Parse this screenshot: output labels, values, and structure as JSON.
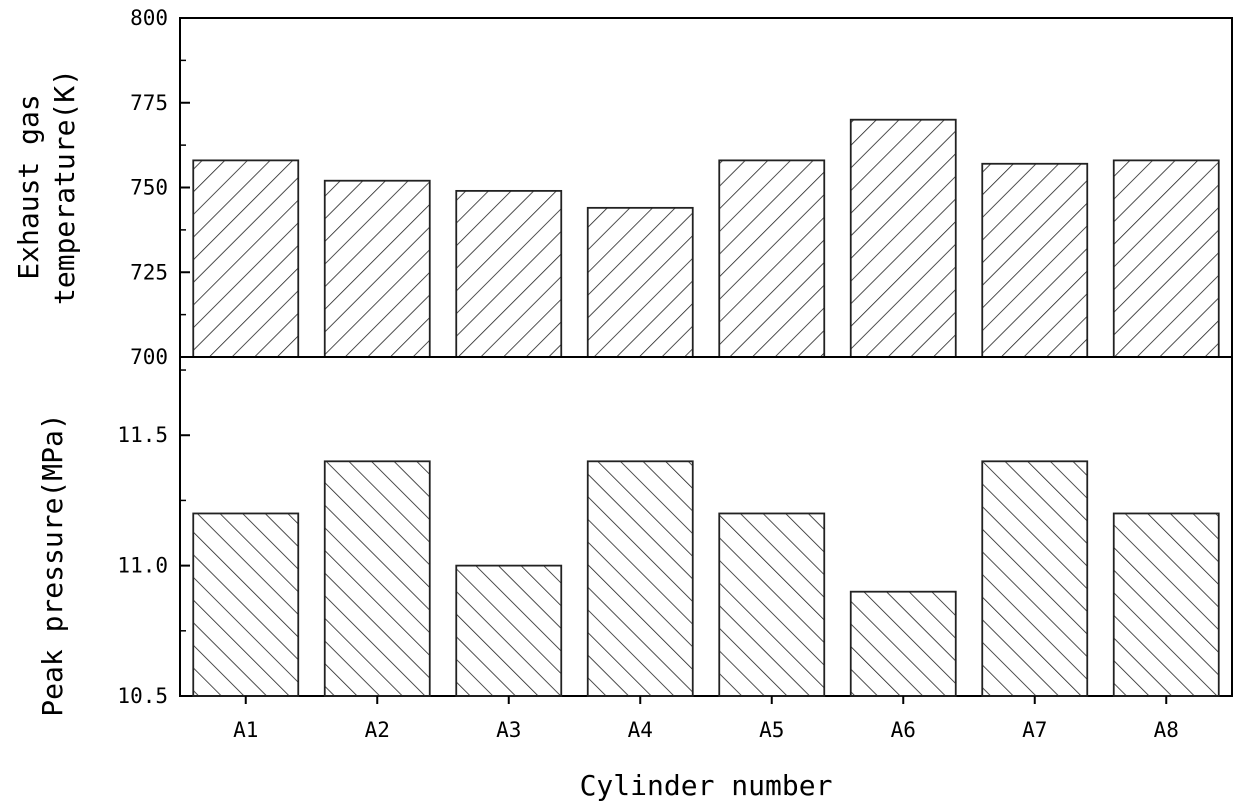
{
  "chart_data": [
    {
      "type": "bar",
      "categories": [
        "A1",
        "A2",
        "A3",
        "A4",
        "A5",
        "A6",
        "A7",
        "A8"
      ],
      "values": [
        758,
        752,
        749,
        744,
        758,
        770,
        757,
        758
      ],
      "ylabel_line1": "Exhaust gas",
      "ylabel_line2": "temperature(K)",
      "ylim": [
        700,
        800
      ],
      "yticks": [
        "700",
        "725",
        "750",
        "775",
        "800"
      ],
      "hatch": "forward-diagonal"
    },
    {
      "type": "bar",
      "categories": [
        "A1",
        "A2",
        "A3",
        "A4",
        "A5",
        "A6",
        "A7",
        "A8"
      ],
      "values": [
        11.2,
        11.4,
        11.0,
        11.4,
        11.2,
        10.9,
        11.4,
        11.2
      ],
      "ylabel": "Peak pressure(MPa)",
      "ylim": [
        10.5,
        11.8
      ],
      "yticks": [
        "10.5",
        "11.0",
        "11.5"
      ],
      "hatch": "back-diagonal"
    }
  ],
  "xlabel": "Cylinder number",
  "colors": {
    "bar_fill": "#ffffff",
    "bar_stroke": "#222222",
    "axis": "#000000"
  }
}
